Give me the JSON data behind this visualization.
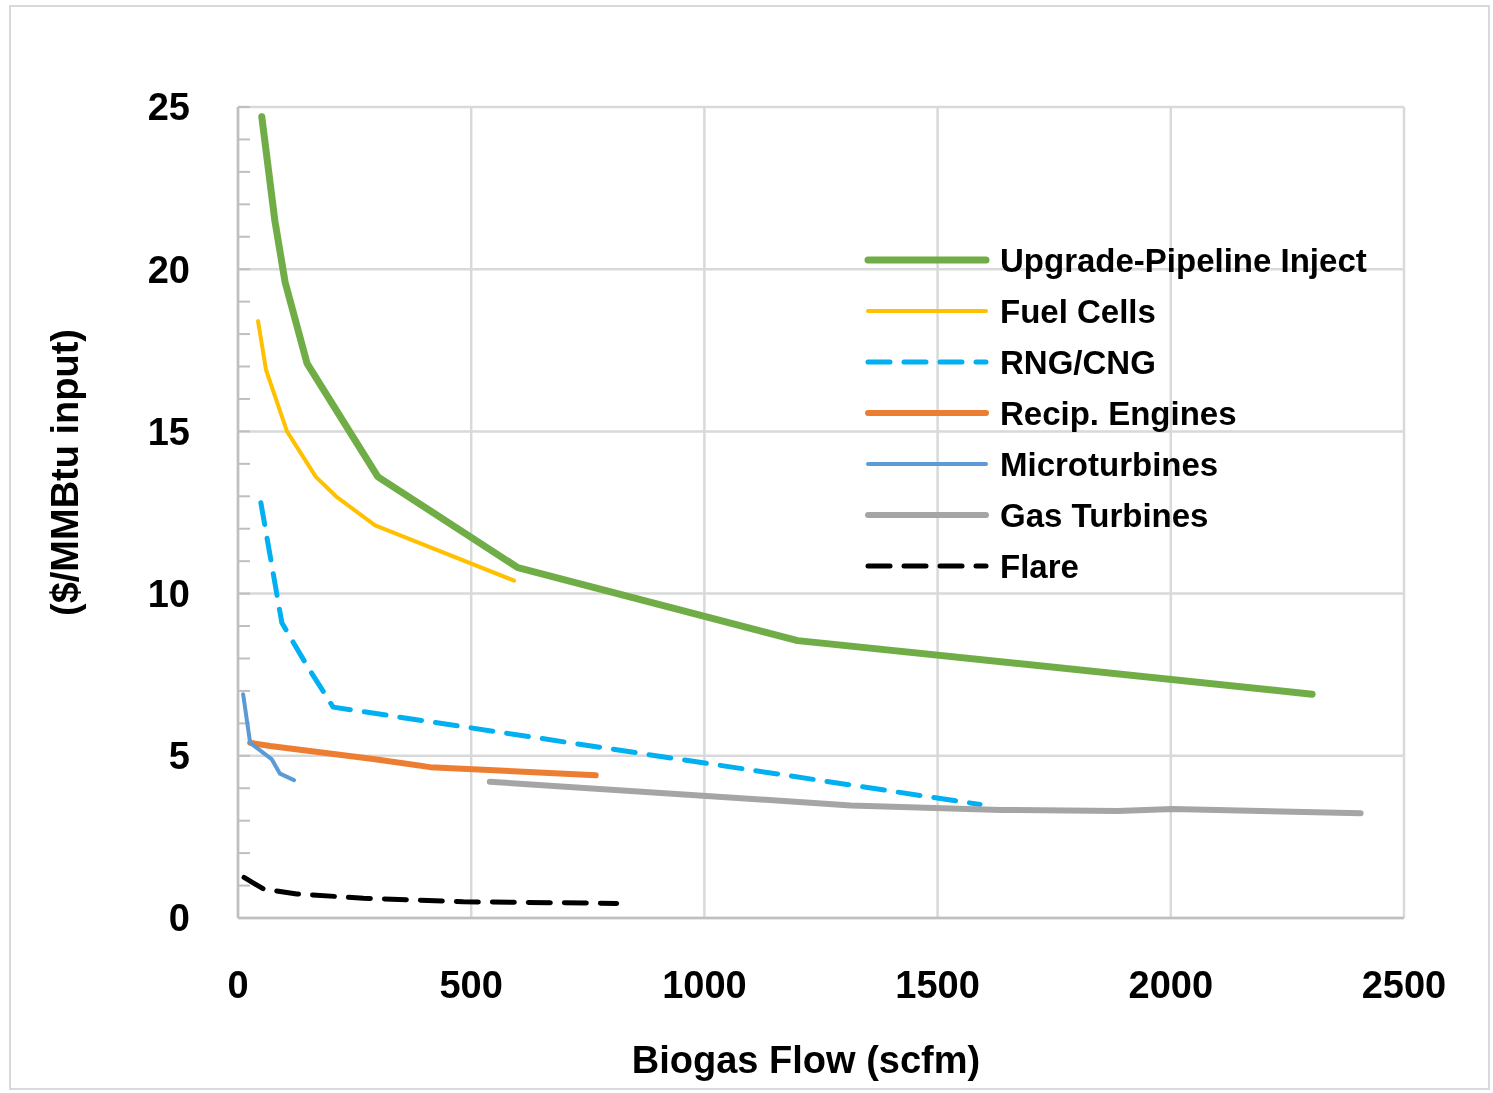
{
  "chart_data": {
    "type": "line",
    "xlabel": "Biogas Flow (scfm)",
    "ylabel": "($/MMBtu input)",
    "xlim": [
      0,
      2500
    ],
    "xticks": [
      0,
      500,
      1000,
      1500,
      2000,
      2500
    ],
    "ylim": [
      0,
      25
    ],
    "yticks": [
      0,
      {
        "value": 1,
        "label": null
      },
      {
        "value": 2,
        "label": null
      },
      {
        "value": 3,
        "label": null
      },
      {
        "value": 4,
        "label": null
      },
      5,
      {
        "value": 6,
        "label": null
      },
      {
        "value": 7,
        "label": null
      },
      {
        "value": 8,
        "label": null
      },
      {
        "value": 9,
        "label": null
      },
      10,
      {
        "value": 11,
        "label": null
      },
      {
        "value": 12,
        "label": null
      },
      {
        "value": 13,
        "label": null
      },
      {
        "value": 14,
        "label": null
      },
      15,
      {
        "value": 16,
        "label": null
      },
      {
        "value": 17,
        "label": null
      },
      {
        "value": 18,
        "label": null
      },
      {
        "value": 19,
        "label": null
      },
      20,
      {
        "value": 21,
        "label": null
      },
      {
        "value": 22,
        "label": null
      },
      {
        "value": 23,
        "label": null
      },
      {
        "value": 24,
        "label": null
      },
      25
    ],
    "grid": true,
    "legend": "right",
    "marker": "none",
    "series": [
      {
        "name": "Upgrade-Pipeline Inject",
        "color": "#70ad47",
        "line_style": "solid",
        "x": [
          51,
          79,
          101,
          148,
          300,
          600,
          1200,
          2303
        ],
        "values": [
          24.7,
          21.5,
          19.6,
          17.1,
          13.6,
          10.8,
          8.55,
          6.9
        ]
      },
      {
        "name": "Fuel Cells",
        "color": "#ffc000",
        "line_style": "solid",
        "x": [
          43,
          60,
          105,
          167,
          210,
          294,
          592
        ],
        "values": [
          18.4,
          16.9,
          15.0,
          13.6,
          13.0,
          12.1,
          10.4
        ]
      },
      {
        "name": "RNG/CNG",
        "color": "#00b0f0",
        "line_style": "dashed",
        "x": [
          49,
          94,
          147,
          204,
          1591
        ],
        "values": [
          12.8,
          9.1,
          7.8,
          6.5,
          3.5
        ]
      },
      {
        "name": "Recip. Engines",
        "color": "#ed7d31",
        "line_style": "solid",
        "x": [
          26,
          69,
          290,
          412,
          767
        ],
        "values": [
          5.4,
          5.3,
          4.9,
          4.65,
          4.4
        ]
      },
      {
        "name": "Microturbines",
        "color": "#5b9bd5",
        "line_style": "solid",
        "x": [
          11,
          26,
          72,
          90,
          120
        ],
        "values": [
          6.9,
          5.4,
          4.9,
          4.45,
          4.25
        ]
      },
      {
        "name": "Gas Turbines",
        "color": "#a5a5a5",
        "line_style": "solid",
        "x": [
          540,
          1314,
          1636,
          1886,
          2004,
          2407
        ],
        "values": [
          4.2,
          3.47,
          3.33,
          3.3,
          3.36,
          3.23
        ]
      },
      {
        "name": "Flare",
        "color": "#000000",
        "line_style": "dashed",
        "x": [
          13,
          54,
          126,
          269,
          483,
          812
        ],
        "values": [
          1.25,
          0.9,
          0.74,
          0.61,
          0.5,
          0.45
        ]
      }
    ]
  }
}
